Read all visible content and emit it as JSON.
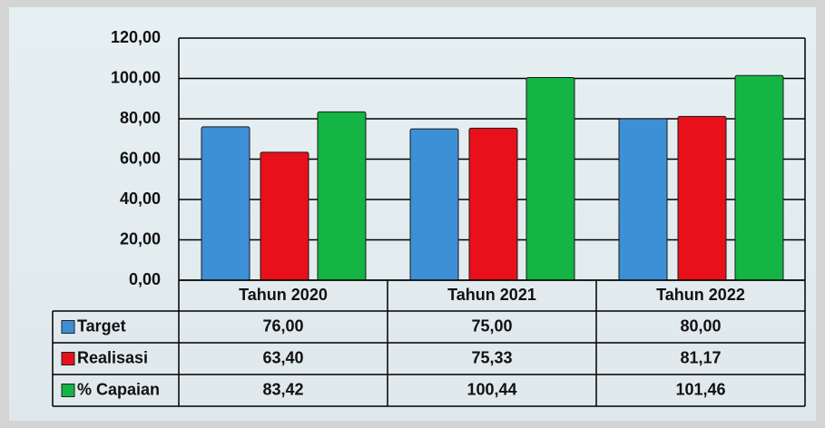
{
  "chart_data": {
    "type": "bar",
    "categories": [
      "Tahun 2020",
      "Tahun 2021",
      "Tahun 2022"
    ],
    "series": [
      {
        "name": "Target",
        "color": "#3d8fd6",
        "values": [
          76,
          75,
          80
        ],
        "value_labels": [
          "76,00",
          "75,00",
          "80,00"
        ]
      },
      {
        "name": "Realisasi",
        "color": "#e8101a",
        "values": [
          63.4,
          75.33,
          81.17
        ],
        "value_labels": [
          "63,40",
          "75,33",
          "81,17"
        ]
      },
      {
        "name": "% Capaian",
        "color": "#14b445",
        "values": [
          83.42,
          100.44,
          101.46
        ],
        "value_labels": [
          "83,42",
          "100,44",
          "101,46"
        ]
      }
    ],
    "ylim": [
      0,
      120
    ],
    "yticks": [
      {
        "value": 0,
        "label": "0,00"
      },
      {
        "value": 20,
        "label": "20,00"
      },
      {
        "value": 40,
        "label": "40,00"
      },
      {
        "value": 60,
        "label": "60,00"
      },
      {
        "value": 80,
        "label": "80,00"
      },
      {
        "value": 100,
        "label": "100,00"
      },
      {
        "value": 120,
        "label": "120,00"
      }
    ],
    "grid": true
  }
}
